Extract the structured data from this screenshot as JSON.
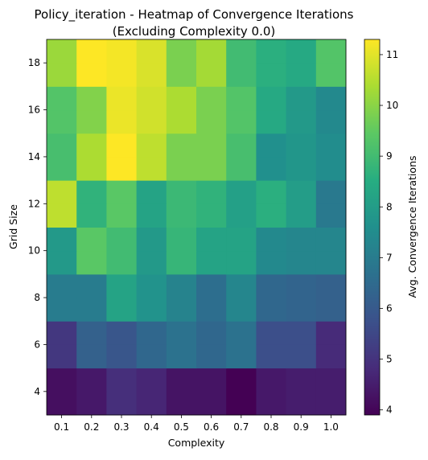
{
  "chart_data": {
    "type": "heatmap",
    "title": "Policy_iteration - Heatmap of Convergence Iterations",
    "subtitle": "(Excluding Complexity 0.0)",
    "xlabel": "Complexity",
    "ylabel": "Grid Size",
    "colorbar_label": "Avg. Convergence Iterations",
    "x_categories": [
      "0.1",
      "0.2",
      "0.3",
      "0.4",
      "0.5",
      "0.6",
      "0.7",
      "0.8",
      "0.9",
      "1.0"
    ],
    "y_values": [
      3,
      4,
      5,
      6,
      7,
      8,
      9,
      10,
      11,
      12,
      13,
      14,
      15,
      16,
      17,
      18
    ],
    "y_ticks": [
      4,
      6,
      8,
      10,
      12,
      14,
      16,
      18
    ],
    "ylim": [
      3,
      19
    ],
    "row_values": [
      [
        4.2,
        4.4,
        4.9,
        4.7,
        4.3,
        4.3,
        3.9,
        4.4,
        4.5,
        4.5
      ],
      [
        4.2,
        4.4,
        4.9,
        4.7,
        4.3,
        4.3,
        3.9,
        4.4,
        4.5,
        4.5
      ],
      [
        5.1,
        6.2,
        5.9,
        6.4,
        6.7,
        6.4,
        6.7,
        5.7,
        5.7,
        4.8
      ],
      [
        5.1,
        6.2,
        5.9,
        6.4,
        6.7,
        6.4,
        6.7,
        5.7,
        5.7,
        4.8
      ],
      [
        7.0,
        7.0,
        8.2,
        7.7,
        7.2,
        6.6,
        7.3,
        6.4,
        6.3,
        6.2
      ],
      [
        7.0,
        7.0,
        8.2,
        7.7,
        7.2,
        6.6,
        7.3,
        6.4,
        6.3,
        6.2
      ],
      [
        7.9,
        9.4,
        9.0,
        7.9,
        8.8,
        8.2,
        8.2,
        7.4,
        7.3,
        7.3
      ],
      [
        7.9,
        9.4,
        9.0,
        7.9,
        8.8,
        8.2,
        8.2,
        7.4,
        7.3,
        7.3
      ],
      [
        10.6,
        8.7,
        9.4,
        8.2,
        8.9,
        8.7,
        8.1,
        8.6,
        8.0,
        6.9
      ],
      [
        10.6,
        8.7,
        9.4,
        8.2,
        8.9,
        8.7,
        8.1,
        8.6,
        8.0,
        6.9
      ],
      [
        9.1,
        10.4,
        11.3,
        10.6,
        9.8,
        9.8,
        9.1,
        7.6,
        7.8,
        7.5
      ],
      [
        9.1,
        10.4,
        11.3,
        10.6,
        9.8,
        9.8,
        9.1,
        7.6,
        7.8,
        7.5
      ],
      [
        9.3,
        9.9,
        11.1,
        10.8,
        10.4,
        9.8,
        9.3,
        8.4,
        7.9,
        7.4
      ],
      [
        9.3,
        9.9,
        11.1,
        10.8,
        10.4,
        9.8,
        9.3,
        8.4,
        7.9,
        7.4
      ],
      [
        10.2,
        11.3,
        11.2,
        10.9,
        9.8,
        10.3,
        9.0,
        8.6,
        8.4,
        9.3
      ],
      [
        10.2,
        11.3,
        11.2,
        10.9,
        9.8,
        10.3,
        9.0,
        8.6,
        8.4,
        9.3
      ]
    ],
    "colorbar": {
      "colormap": "viridis",
      "min": 3.9,
      "max": 11.3,
      "ticks": [
        4,
        5,
        6,
        7,
        8,
        9,
        10,
        11
      ]
    },
    "grid": false
  }
}
